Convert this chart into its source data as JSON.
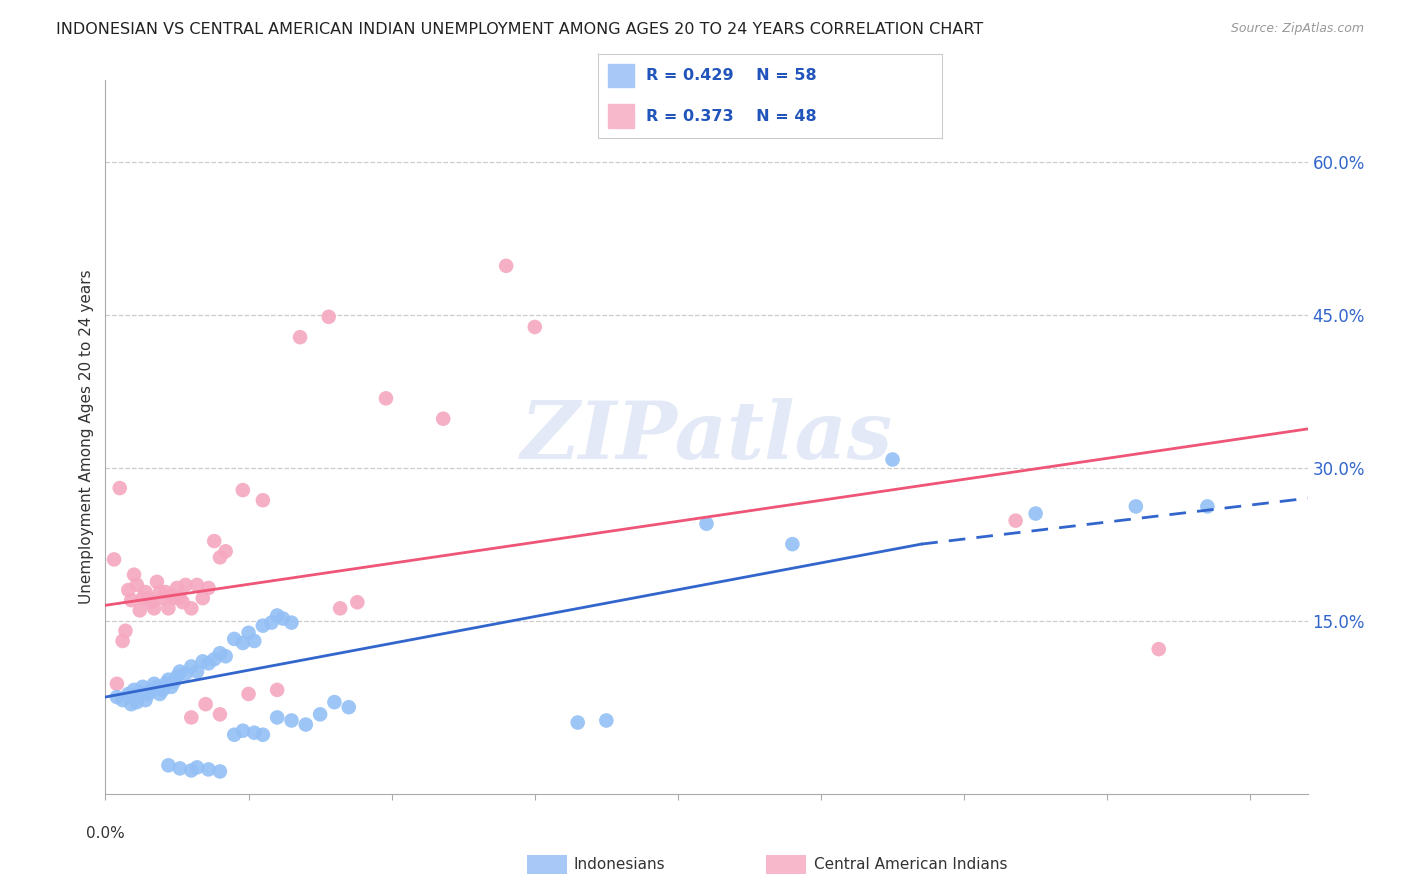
{
  "title": "INDONESIAN VS CENTRAL AMERICAN INDIAN UNEMPLOYMENT AMONG AGES 20 TO 24 YEARS CORRELATION CHART",
  "source": "Source: ZipAtlas.com",
  "ylabel": "Unemployment Among Ages 20 to 24 years",
  "xlim": [
    0.0,
    0.42
  ],
  "ylim": [
    -0.02,
    0.68
  ],
  "legend_color1": "#a8c8f8",
  "legend_color2": "#f8b8cc",
  "indonesian_color": "#92bff5",
  "central_color": "#f5a8c0",
  "trendline1_color": "#3366cc",
  "trendline2_color": "#ee5577",
  "watermark": "ZIPatlas",
  "indonesian_scatter": [
    [
      0.004,
      0.075
    ],
    [
      0.006,
      0.072
    ],
    [
      0.008,
      0.078
    ],
    [
      0.009,
      0.068
    ],
    [
      0.01,
      0.082
    ],
    [
      0.011,
      0.07
    ],
    [
      0.012,
      0.08
    ],
    [
      0.013,
      0.085
    ],
    [
      0.014,
      0.072
    ],
    [
      0.015,
      0.078
    ],
    [
      0.016,
      0.082
    ],
    [
      0.017,
      0.088
    ],
    [
      0.018,
      0.085
    ],
    [
      0.019,
      0.078
    ],
    [
      0.02,
      0.082
    ],
    [
      0.021,
      0.088
    ],
    [
      0.022,
      0.092
    ],
    [
      0.023,
      0.085
    ],
    [
      0.024,
      0.09
    ],
    [
      0.025,
      0.095
    ],
    [
      0.026,
      0.1
    ],
    [
      0.028,
      0.098
    ],
    [
      0.03,
      0.105
    ],
    [
      0.032,
      0.1
    ],
    [
      0.034,
      0.11
    ],
    [
      0.036,
      0.108
    ],
    [
      0.038,
      0.112
    ],
    [
      0.04,
      0.118
    ],
    [
      0.042,
      0.115
    ],
    [
      0.045,
      0.132
    ],
    [
      0.048,
      0.128
    ],
    [
      0.05,
      0.138
    ],
    [
      0.052,
      0.13
    ],
    [
      0.055,
      0.145
    ],
    [
      0.058,
      0.148
    ],
    [
      0.06,
      0.155
    ],
    [
      0.062,
      0.152
    ],
    [
      0.065,
      0.148
    ],
    [
      0.022,
      0.008
    ],
    [
      0.026,
      0.005
    ],
    [
      0.03,
      0.003
    ],
    [
      0.032,
      0.006
    ],
    [
      0.036,
      0.004
    ],
    [
      0.04,
      0.002
    ],
    [
      0.045,
      0.038
    ],
    [
      0.048,
      0.042
    ],
    [
      0.052,
      0.04
    ],
    [
      0.055,
      0.038
    ],
    [
      0.06,
      0.055
    ],
    [
      0.065,
      0.052
    ],
    [
      0.07,
      0.048
    ],
    [
      0.075,
      0.058
    ],
    [
      0.08,
      0.07
    ],
    [
      0.085,
      0.065
    ],
    [
      0.165,
      0.05
    ],
    [
      0.175,
      0.052
    ],
    [
      0.21,
      0.245
    ],
    [
      0.24,
      0.225
    ],
    [
      0.275,
      0.308
    ],
    [
      0.325,
      0.255
    ],
    [
      0.36,
      0.262
    ],
    [
      0.385,
      0.262
    ]
  ],
  "central_scatter": [
    [
      0.003,
      0.21
    ],
    [
      0.005,
      0.28
    ],
    [
      0.006,
      0.13
    ],
    [
      0.007,
      0.14
    ],
    [
      0.008,
      0.18
    ],
    [
      0.009,
      0.17
    ],
    [
      0.01,
      0.195
    ],
    [
      0.011,
      0.185
    ],
    [
      0.012,
      0.16
    ],
    [
      0.013,
      0.172
    ],
    [
      0.014,
      0.178
    ],
    [
      0.015,
      0.172
    ],
    [
      0.016,
      0.168
    ],
    [
      0.017,
      0.162
    ],
    [
      0.018,
      0.188
    ],
    [
      0.019,
      0.178
    ],
    [
      0.02,
      0.172
    ],
    [
      0.021,
      0.178
    ],
    [
      0.022,
      0.162
    ],
    [
      0.023,
      0.175
    ],
    [
      0.024,
      0.172
    ],
    [
      0.025,
      0.182
    ],
    [
      0.026,
      0.172
    ],
    [
      0.027,
      0.168
    ],
    [
      0.028,
      0.185
    ],
    [
      0.03,
      0.162
    ],
    [
      0.032,
      0.185
    ],
    [
      0.034,
      0.172
    ],
    [
      0.036,
      0.182
    ],
    [
      0.038,
      0.228
    ],
    [
      0.04,
      0.212
    ],
    [
      0.042,
      0.218
    ],
    [
      0.048,
      0.278
    ],
    [
      0.055,
      0.268
    ],
    [
      0.068,
      0.428
    ],
    [
      0.078,
      0.448
    ],
    [
      0.082,
      0.162
    ],
    [
      0.088,
      0.168
    ],
    [
      0.098,
      0.368
    ],
    [
      0.118,
      0.348
    ],
    [
      0.14,
      0.498
    ],
    [
      0.15,
      0.438
    ],
    [
      0.03,
      0.055
    ],
    [
      0.035,
      0.068
    ],
    [
      0.04,
      0.058
    ],
    [
      0.05,
      0.078
    ],
    [
      0.06,
      0.082
    ],
    [
      0.318,
      0.248
    ],
    [
      0.368,
      0.122
    ],
    [
      0.004,
      0.088
    ]
  ],
  "trendline_indo_solid": {
    "x_start": 0.0,
    "x_end": 0.285,
    "y_start": 0.075,
    "y_end": 0.225
  },
  "trendline_indo_dashed": {
    "x_start": 0.285,
    "x_end": 0.42,
    "y_start": 0.225,
    "y_end": 0.27
  },
  "trendline_central": {
    "x_start": 0.0,
    "x_end": 0.42,
    "y_start": 0.165,
    "y_end": 0.338
  }
}
